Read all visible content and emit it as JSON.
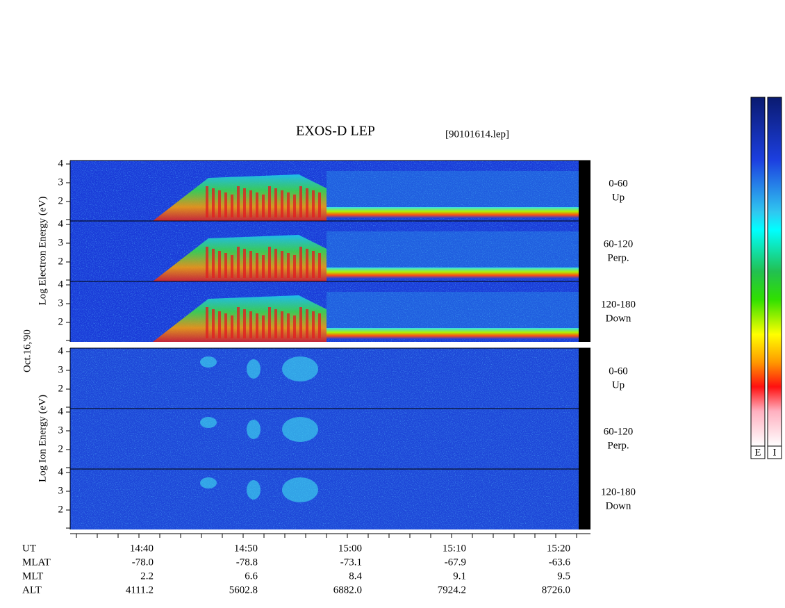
{
  "header": {
    "title": "EXOS-D LEP",
    "file": "[90101614.lep]"
  },
  "date": "Oct.16,'90",
  "groups": [
    {
      "axis_label": "Log Electron Energy (eV)",
      "panels": [
        {
          "yticks": [
            "4",
            "3",
            "2"
          ],
          "channel": "0-60",
          "direction": "Up"
        },
        {
          "yticks": [
            "4",
            "3",
            "2"
          ],
          "channel": "60-120",
          "direction": "Perp."
        },
        {
          "yticks": [
            "4",
            "3",
            "2"
          ],
          "channel": "120-180",
          "direction": "Down"
        }
      ]
    },
    {
      "axis_label": "Log Ion Energy (eV)",
      "panels": [
        {
          "yticks": [
            "4",
            "3",
            "2"
          ],
          "channel": "0-60",
          "direction": "Up"
        },
        {
          "yticks": [
            "4",
            "3",
            "2"
          ],
          "channel": "60-120",
          "direction": "Perp."
        },
        {
          "yticks": [
            "4",
            "3",
            "2"
          ],
          "channel": "120-180",
          "direction": "Down"
        }
      ]
    }
  ],
  "time_axis": {
    "ticks": [
      "14:40",
      "14:50",
      "15:00",
      "15:10",
      "15:20"
    ]
  },
  "table": {
    "labels": [
      "UT",
      "MLAT",
      "MLT",
      "ALT"
    ],
    "rows": [
      [
        "-78.0",
        "-78.8",
        "-73.1",
        "-67.9",
        "-63.6"
      ],
      [
        "2.2",
        "6.6",
        "8.4",
        "9.1",
        "9.5"
      ],
      [
        "4111.2",
        "5602.8",
        "6882.0",
        "7924.2",
        "8726.0"
      ]
    ]
  },
  "colorbars": [
    "E",
    "I"
  ]
}
